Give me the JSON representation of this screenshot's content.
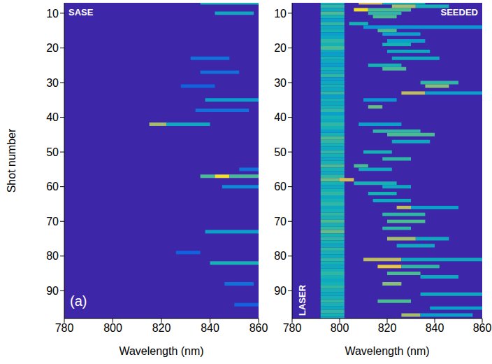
{
  "chart_data": [
    {
      "type": "heatmap",
      "title": "SASE",
      "x_label": "Wavelength (nm)",
      "y_label": "Shot number",
      "xlim": [
        780,
        860
      ],
      "xticks": [
        780,
        800,
        820,
        840,
        860
      ],
      "ylim": [
        7,
        98
      ],
      "yticks": [
        10,
        20,
        30,
        40,
        50,
        60,
        70,
        80,
        90
      ],
      "zlim": [
        0,
        1
      ],
      "annotations": [
        "(a)"
      ],
      "streaks": [
        [
          7,
          836,
          860,
          0.5
        ],
        [
          10,
          842,
          858,
          0.45
        ],
        [
          23,
          832,
          848,
          0.2
        ],
        [
          27,
          836,
          852,
          0.2
        ],
        [
          31,
          828,
          842,
          0.15
        ],
        [
          35,
          838,
          860,
          0.4
        ],
        [
          38,
          834,
          856,
          0.2
        ],
        [
          42,
          815,
          822,
          0.75
        ],
        [
          42,
          822,
          840,
          0.45
        ],
        [
          55,
          852,
          860,
          0.2
        ],
        [
          57,
          836,
          842,
          0.6
        ],
        [
          57,
          842,
          848,
          0.95
        ],
        [
          57,
          848,
          860,
          0.6
        ],
        [
          60,
          845,
          860,
          0.3
        ],
        [
          73,
          838,
          860,
          0.4
        ],
        [
          79,
          826,
          836,
          0.15
        ],
        [
          82,
          840,
          860,
          0.5
        ],
        [
          88,
          846,
          858,
          0.2
        ],
        [
          94,
          850,
          860,
          0.15
        ]
      ]
    },
    {
      "type": "heatmap",
      "title": "SEEDED",
      "x_label": "Wavelength (nm)",
      "xlim": [
        780,
        860
      ],
      "xticks": [
        780,
        800,
        820,
        840,
        860
      ],
      "ylim": [
        7,
        98
      ],
      "yticks": [
        10,
        20,
        30,
        40,
        50,
        60,
        70,
        80,
        90
      ],
      "zlim": [
        0,
        1
      ],
      "annotations": [
        "LASER"
      ],
      "streaks": [
        [
          7,
          792,
          802,
          0.5
        ],
        [
          8,
          792,
          802,
          0.55
        ],
        [
          9,
          792,
          802,
          0.45
        ],
        [
          10,
          792,
          802,
          0.6
        ],
        [
          11,
          792,
          802,
          0.5
        ],
        [
          12,
          792,
          802,
          0.4
        ],
        [
          13,
          792,
          802,
          0.55
        ],
        [
          14,
          792,
          802,
          0.45
        ],
        [
          15,
          792,
          802,
          0.5
        ],
        [
          16,
          792,
          802,
          0.4
        ],
        [
          17,
          792,
          802,
          0.45
        ],
        [
          18,
          792,
          802,
          0.55
        ],
        [
          19,
          792,
          802,
          0.5
        ],
        [
          20,
          792,
          802,
          0.6
        ],
        [
          21,
          792,
          802,
          0.45
        ],
        [
          22,
          792,
          802,
          0.4
        ],
        [
          23,
          792,
          802,
          0.5
        ],
        [
          24,
          792,
          802,
          0.45
        ],
        [
          25,
          792,
          802,
          0.4
        ],
        [
          26,
          792,
          802,
          0.5
        ],
        [
          27,
          792,
          802,
          0.45
        ],
        [
          28,
          792,
          802,
          0.55
        ],
        [
          29,
          792,
          802,
          0.4
        ],
        [
          30,
          792,
          802,
          0.45
        ],
        [
          31,
          792,
          802,
          0.5
        ],
        [
          32,
          792,
          802,
          0.45
        ],
        [
          33,
          792,
          802,
          0.55
        ],
        [
          34,
          792,
          802,
          0.4
        ],
        [
          35,
          792,
          802,
          0.5
        ],
        [
          36,
          792,
          802,
          0.45
        ],
        [
          37,
          792,
          802,
          0.5
        ],
        [
          38,
          792,
          802,
          0.55
        ],
        [
          39,
          792,
          802,
          0.4
        ],
        [
          40,
          792,
          802,
          0.5
        ],
        [
          41,
          792,
          802,
          0.45
        ],
        [
          42,
          792,
          802,
          0.55
        ],
        [
          43,
          792,
          802,
          0.5
        ],
        [
          44,
          792,
          802,
          0.4
        ],
        [
          45,
          792,
          802,
          0.5
        ],
        [
          46,
          792,
          802,
          0.6
        ],
        [
          47,
          792,
          802,
          0.55
        ],
        [
          48,
          792,
          802,
          0.5
        ],
        [
          49,
          792,
          802,
          0.45
        ],
        [
          50,
          792,
          802,
          0.55
        ],
        [
          51,
          792,
          802,
          0.5
        ],
        [
          52,
          792,
          802,
          0.45
        ],
        [
          53,
          792,
          802,
          0.5
        ],
        [
          54,
          792,
          802,
          0.6
        ],
        [
          55,
          792,
          802,
          0.5
        ],
        [
          56,
          792,
          802,
          0.45
        ],
        [
          57,
          792,
          802,
          0.55
        ],
        [
          58,
          792,
          802,
          0.65
        ],
        [
          59,
          792,
          802,
          0.5
        ],
        [
          60,
          792,
          802,
          0.45
        ],
        [
          61,
          792,
          802,
          0.5
        ],
        [
          62,
          792,
          802,
          0.55
        ],
        [
          63,
          792,
          802,
          0.45
        ],
        [
          64,
          792,
          802,
          0.5
        ],
        [
          65,
          792,
          802,
          0.55
        ],
        [
          66,
          792,
          802,
          0.45
        ],
        [
          67,
          792,
          802,
          0.5
        ],
        [
          68,
          792,
          802,
          0.55
        ],
        [
          69,
          792,
          802,
          0.5
        ],
        [
          70,
          792,
          802,
          0.6
        ],
        [
          71,
          792,
          802,
          0.5
        ],
        [
          72,
          792,
          802,
          0.55
        ],
        [
          73,
          792,
          802,
          0.65
        ],
        [
          74,
          792,
          802,
          0.5
        ],
        [
          75,
          792,
          802,
          0.55
        ],
        [
          76,
          792,
          802,
          0.5
        ],
        [
          77,
          792,
          802,
          0.45
        ],
        [
          78,
          792,
          802,
          0.55
        ],
        [
          79,
          792,
          802,
          0.5
        ],
        [
          80,
          792,
          802,
          0.45
        ],
        [
          81,
          792,
          802,
          0.55
        ],
        [
          82,
          792,
          802,
          0.5
        ],
        [
          83,
          792,
          802,
          0.45
        ],
        [
          84,
          792,
          802,
          0.5
        ],
        [
          85,
          792,
          802,
          0.55
        ],
        [
          86,
          792,
          802,
          0.5
        ],
        [
          87,
          792,
          802,
          0.45
        ],
        [
          88,
          792,
          802,
          0.5
        ],
        [
          89,
          792,
          802,
          0.55
        ],
        [
          90,
          792,
          802,
          0.5
        ],
        [
          91,
          792,
          802,
          0.45
        ],
        [
          92,
          792,
          802,
          0.5
        ],
        [
          93,
          792,
          802,
          0.55
        ],
        [
          94,
          792,
          802,
          0.5
        ],
        [
          95,
          792,
          802,
          0.45
        ],
        [
          96,
          792,
          802,
          0.55
        ],
        [
          97,
          792,
          802,
          0.5
        ],
        [
          98,
          792,
          802,
          0.45
        ],
        [
          7,
          808,
          818,
          0.85
        ],
        [
          7,
          818,
          836,
          0.5
        ],
        [
          8,
          822,
          832,
          0.75
        ],
        [
          8,
          832,
          846,
          0.5
        ],
        [
          9,
          806,
          812,
          0.95
        ],
        [
          9,
          812,
          830,
          0.6
        ],
        [
          10,
          812,
          826,
          0.55
        ],
        [
          11,
          814,
          824,
          0.6
        ],
        [
          13,
          804,
          812,
          0.5
        ],
        [
          14,
          810,
          860,
          0.35
        ],
        [
          15,
          816,
          824,
          0.6
        ],
        [
          16,
          818,
          834,
          0.4
        ],
        [
          18,
          820,
          836,
          0.4
        ],
        [
          19,
          818,
          830,
          0.5
        ],
        [
          21,
          820,
          838,
          0.45
        ],
        [
          23,
          822,
          842,
          0.45
        ],
        [
          25,
          812,
          826,
          0.5
        ],
        [
          26,
          818,
          828,
          0.6
        ],
        [
          30,
          834,
          850,
          0.55
        ],
        [
          31,
          836,
          846,
          0.7
        ],
        [
          33,
          826,
          836,
          0.8
        ],
        [
          33,
          836,
          860,
          0.4
        ],
        [
          35,
          810,
          824,
          0.35
        ],
        [
          37,
          812,
          818,
          0.65
        ],
        [
          42,
          808,
          826,
          0.4
        ],
        [
          44,
          814,
          834,
          0.55
        ],
        [
          45,
          820,
          840,
          0.6
        ],
        [
          47,
          822,
          838,
          0.45
        ],
        [
          50,
          810,
          822,
          0.5
        ],
        [
          52,
          818,
          830,
          0.55
        ],
        [
          54,
          806,
          812,
          0.6
        ],
        [
          55,
          808,
          822,
          0.45
        ],
        [
          58,
          800,
          806,
          0.85
        ],
        [
          59,
          806,
          824,
          0.5
        ],
        [
          60,
          818,
          830,
          0.45
        ],
        [
          62,
          812,
          824,
          0.5
        ],
        [
          64,
          814,
          830,
          0.45
        ],
        [
          66,
          824,
          830,
          0.8
        ],
        [
          66,
          830,
          850,
          0.4
        ],
        [
          68,
          818,
          836,
          0.55
        ],
        [
          70,
          820,
          836,
          0.6
        ],
        [
          72,
          818,
          830,
          0.55
        ],
        [
          75,
          820,
          832,
          0.75
        ],
        [
          75,
          832,
          846,
          0.45
        ],
        [
          77,
          824,
          840,
          0.45
        ],
        [
          81,
          810,
          826,
          0.8
        ],
        [
          81,
          826,
          860,
          0.45
        ],
        [
          83,
          816,
          826,
          0.9
        ],
        [
          83,
          826,
          842,
          0.55
        ],
        [
          85,
          820,
          834,
          0.6
        ],
        [
          86,
          834,
          850,
          0.45
        ],
        [
          88,
          818,
          826,
          0.7
        ],
        [
          91,
          834,
          860,
          0.45
        ],
        [
          93,
          816,
          830,
          0.6
        ],
        [
          95,
          838,
          860,
          0.4
        ],
        [
          97,
          826,
          834,
          0.75
        ],
        [
          97,
          834,
          856,
          0.4
        ]
      ]
    }
  ]
}
